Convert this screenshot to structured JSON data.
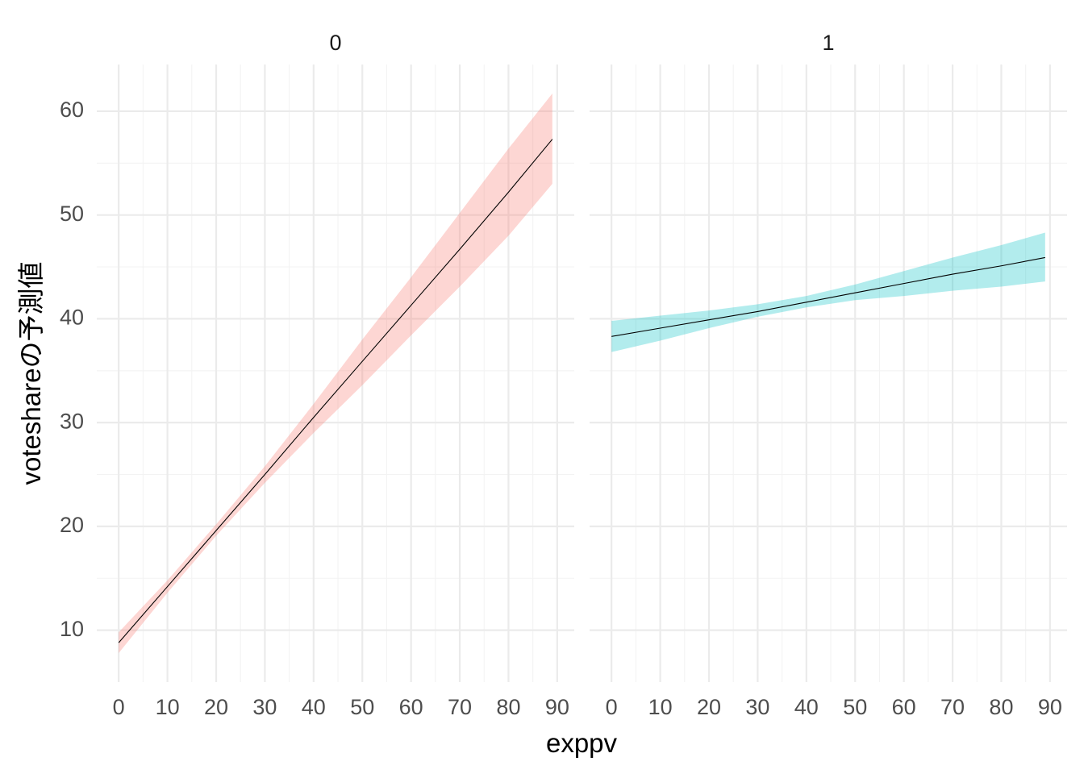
{
  "chart_data": {
    "type": "line",
    "xlabel": "exppv",
    "ylabel": "voteshareの予測値",
    "xlim": [
      -4.5,
      93.5
    ],
    "ylim": [
      5,
      64.5
    ],
    "x_major_ticks": [
      0,
      10,
      20,
      30,
      40,
      50,
      60,
      70,
      80,
      90
    ],
    "x_minor_ticks": [
      5,
      15,
      25,
      35,
      45,
      55,
      65,
      75,
      85
    ],
    "y_major_ticks": [
      10,
      20,
      30,
      40,
      50,
      60
    ],
    "y_minor_ticks": [
      15,
      25,
      35,
      45,
      55
    ],
    "grid": true,
    "legend": "none",
    "facets": [
      {
        "strip_label": "0",
        "band_color": "#F8766D",
        "x": [
          0,
          10,
          20,
          30,
          40,
          50,
          60,
          70,
          80,
          89
        ],
        "fit": [
          8.8,
          14.2,
          19.6,
          25.0,
          30.5,
          35.9,
          41.3,
          46.7,
          52.2,
          57.3
        ],
        "lower": [
          7.8,
          13.6,
          19.1,
          24.2,
          29.0,
          33.6,
          38.4,
          43.1,
          48.0,
          53.0
        ],
        "upper": [
          9.8,
          14.8,
          20.2,
          25.8,
          31.8,
          38.0,
          44.0,
          50.2,
          56.4,
          61.7
        ]
      },
      {
        "strip_label": "1",
        "band_color": "#00BFC4",
        "x": [
          0,
          10,
          20,
          30,
          40,
          50,
          60,
          70,
          80,
          89
        ],
        "fit": [
          38.3,
          39.1,
          39.9,
          40.7,
          41.6,
          42.5,
          43.4,
          44.3,
          45.1,
          45.9
        ],
        "lower": [
          36.8,
          37.9,
          39.1,
          40.2,
          41.1,
          41.8,
          42.2,
          42.7,
          43.1,
          43.6
        ],
        "upper": [
          39.8,
          40.3,
          40.8,
          41.4,
          42.2,
          43.3,
          44.6,
          45.9,
          47.1,
          48.3
        ]
      }
    ]
  }
}
